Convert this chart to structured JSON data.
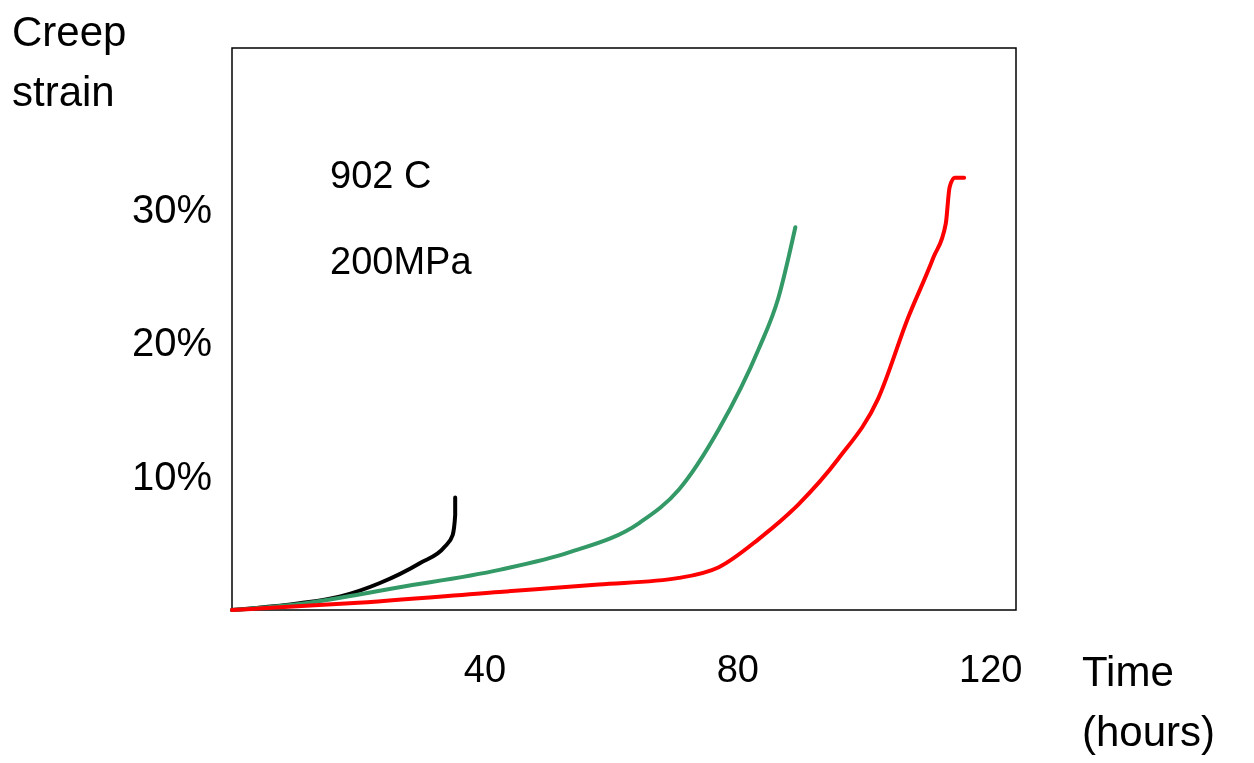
{
  "chart_data": {
    "type": "line",
    "xlabel": "Time (hours)",
    "ylabel": "Creep strain",
    "xlim": [
      0,
      124
    ],
    "xticks": [
      40,
      80,
      120
    ],
    "ylim": [
      0,
      42
    ],
    "yticks": [
      {
        "value": 10,
        "label": "10%"
      },
      {
        "value": 20,
        "label": "20%"
      },
      {
        "value": 30,
        "label": "30%"
      }
    ],
    "grid": false,
    "marker": "none",
    "line_style": "solid",
    "annotations": [
      "902 C",
      "200MPa"
    ],
    "series": [
      {
        "color": "#000000",
        "x": [
          0,
          10.7,
          17,
          23.3,
          29.7,
          33.6,
          34.9,
          35.3,
          35.3
        ],
        "values": [
          0,
          0.5,
          1.0,
          2.0,
          3.5,
          4.7,
          5.6,
          7.1,
          8.4
        ]
      },
      {
        "color": "#339966",
        "x": [
          0,
          10.7,
          26.5,
          42.3,
          53.3,
          64.4,
          70.7,
          77,
          83.3,
          86.4,
          89.1
        ],
        "values": [
          0,
          0.45,
          1.7,
          3.0,
          4.3,
          6.5,
          9.0,
          13.5,
          19.5,
          23.3,
          28.6
        ]
      },
      {
        "color": "#ff0000",
        "x": [
          0,
          18.6,
          42.3,
          58,
          70.7,
          77,
          83.3,
          89.6,
          95.9,
          102.2,
          106.9,
          110.9,
          112.9,
          113.5,
          114.3,
          115.8
        ],
        "values": [
          0,
          0.5,
          1.35,
          1.9,
          2.4,
          3.2,
          5.3,
          7.9,
          11.3,
          15.8,
          21.8,
          26.3,
          28.9,
          31.6,
          32.3,
          32.3
        ]
      }
    ]
  }
}
